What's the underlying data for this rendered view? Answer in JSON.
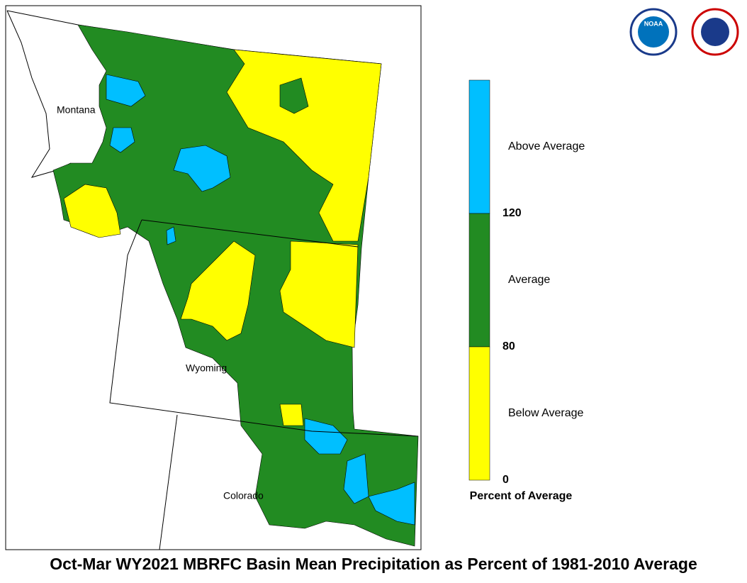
{
  "title": "Oct-Mar WY2021 MBRFC Basin Mean Precipitation as Percent of 1981-2010 Average",
  "states": [
    "Montana",
    "Wyoming",
    "Colorado"
  ],
  "logos": {
    "noaa": "NOAA"
  },
  "legend": {
    "title": "Percent of Average",
    "classes": [
      {
        "label": "Above Average",
        "color": "#00bfff"
      },
      {
        "label": "Average",
        "color": "#228b22"
      },
      {
        "label": "Below Average",
        "color": "#ffff00"
      }
    ],
    "breaks": [
      120,
      80,
      0
    ]
  }
}
